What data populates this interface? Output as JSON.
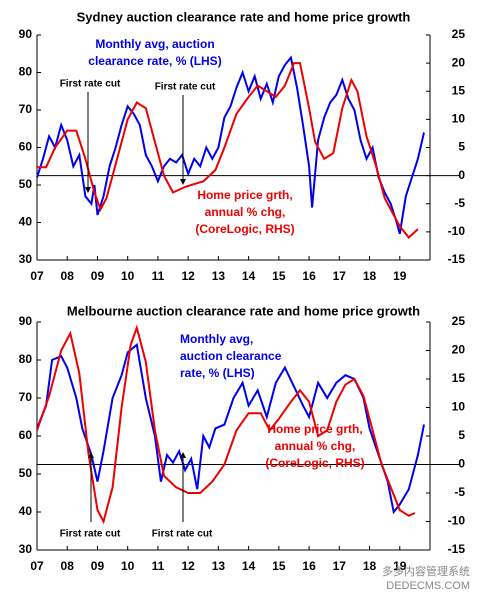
{
  "chart_data": [
    {
      "type": "line",
      "title": "Sydney auction clearance rate and home price growth",
      "xlim": [
        2007,
        2020
      ],
      "ylim": [
        30,
        90
      ],
      "y2lim": [
        -15,
        25
      ],
      "xticks": [
        {
          "value": 2007,
          "label": "07"
        },
        {
          "value": 2008,
          "label": "08"
        },
        {
          "value": 2009,
          "label": "09"
        },
        {
          "value": 2010,
          "label": "10"
        },
        {
          "value": 2011,
          "label": "11"
        },
        {
          "value": 2012,
          "label": "12"
        },
        {
          "value": 2013,
          "label": "13"
        },
        {
          "value": 2014,
          "label": "14"
        },
        {
          "value": 2015,
          "label": "15"
        },
        {
          "value": 2016,
          "label": "16"
        },
        {
          "value": 2017,
          "label": "17"
        },
        {
          "value": 2018,
          "label": "18"
        },
        {
          "value": 2019,
          "label": "19"
        }
      ],
      "yticks": [
        30,
        40,
        50,
        60,
        70,
        80,
        90
      ],
      "y2ticks": [
        -15,
        -10,
        -5,
        0,
        5,
        10,
        15,
        20,
        25
      ],
      "annotations": [
        "First rate cut",
        "First rate cut"
      ],
      "series": [
        {
          "name": [
            "Monthly avg, auction",
            "clearance rate, % (LHS)"
          ],
          "color": "#0000ee",
          "axis": "y",
          "x": [
            2007.0,
            2007.2,
            2007.4,
            2007.6,
            2007.8,
            2008.0,
            2008.2,
            2008.4,
            2008.6,
            2008.8,
            2008.9,
            2009.0,
            2009.2,
            2009.4,
            2009.6,
            2009.8,
            2010.0,
            2010.2,
            2010.4,
            2010.6,
            2010.8,
            2011.0,
            2011.2,
            2011.4,
            2011.6,
            2011.8,
            2012.0,
            2012.2,
            2012.4,
            2012.6,
            2012.8,
            2013.0,
            2013.2,
            2013.4,
            2013.6,
            2013.8,
            2014.0,
            2014.2,
            2014.4,
            2014.6,
            2014.8,
            2015.0,
            2015.2,
            2015.4,
            2015.6,
            2015.8,
            2016.0,
            2016.1,
            2016.3,
            2016.5,
            2016.7,
            2016.9,
            2017.1,
            2017.3,
            2017.5,
            2017.7,
            2017.9,
            2018.1,
            2018.3,
            2018.5,
            2018.7,
            2018.9,
            2019.0,
            2019.2,
            2019.4,
            2019.6,
            2019.8
          ],
          "values": [
            52,
            57,
            63,
            60,
            66,
            62,
            55,
            58,
            47,
            45,
            50,
            42,
            47,
            55,
            60,
            66,
            71,
            69,
            66,
            58,
            55,
            51,
            55,
            57,
            56,
            58,
            53,
            57,
            55,
            60,
            57,
            60,
            68,
            71,
            76,
            80,
            75,
            79,
            73,
            77,
            72,
            79,
            82,
            84,
            76,
            66,
            55,
            44,
            62,
            68,
            72,
            74,
            78,
            73,
            70,
            62,
            57,
            60,
            52,
            48,
            45,
            40,
            37,
            47,
            52,
            57,
            64
          ]
        },
        {
          "name": [
            "Home price grth,",
            "annual % chg,",
            "(CoreLogic, RHS)"
          ],
          "color": "#ee0000",
          "axis": "y2",
          "x": [
            2007.0,
            2007.3,
            2007.6,
            2008.0,
            2008.3,
            2008.6,
            2008.9,
            2009.1,
            2009.3,
            2009.6,
            2010.0,
            2010.3,
            2010.6,
            2010.9,
            2011.2,
            2011.5,
            2011.9,
            2012.2,
            2012.5,
            2012.9,
            2013.2,
            2013.6,
            2014.0,
            2014.3,
            2014.6,
            2014.9,
            2015.2,
            2015.5,
            2015.7,
            2016.0,
            2016.2,
            2016.5,
            2016.8,
            2017.1,
            2017.4,
            2017.6,
            2017.9,
            2018.2,
            2018.5,
            2018.8,
            2019.0,
            2019.3,
            2019.5,
            2019.6
          ],
          "values": [
            1.5,
            1.5,
            5,
            8,
            8,
            3,
            -3,
            -6,
            -4,
            2,
            10,
            13,
            12,
            6,
            0,
            -3,
            -2,
            -1.5,
            -1,
            1,
            5,
            11,
            14,
            16,
            15,
            14,
            16,
            20,
            20,
            12,
            6,
            3,
            4,
            12,
            17,
            15,
            7,
            2,
            -4,
            -7,
            -9,
            -11,
            -10,
            -9.5
          ]
        }
      ]
    },
    {
      "type": "line",
      "title": "Melbourne auction clearance rate and home price growth",
      "xlim": [
        2007,
        2020
      ],
      "ylim": [
        30,
        90
      ],
      "y2lim": [
        -15,
        25
      ],
      "xticks": [
        {
          "value": 2007,
          "label": "07"
        },
        {
          "value": 2008,
          "label": "08"
        },
        {
          "value": 2009,
          "label": "09"
        },
        {
          "value": 2010,
          "label": "10"
        },
        {
          "value": 2011,
          "label": "11"
        },
        {
          "value": 2012,
          "label": "12"
        },
        {
          "value": 2013,
          "label": "13"
        },
        {
          "value": 2014,
          "label": "14"
        },
        {
          "value": 2015,
          "label": "15"
        },
        {
          "value": 2016,
          "label": "16"
        },
        {
          "value": 2017,
          "label": "17"
        },
        {
          "value": 2018,
          "label": "18"
        },
        {
          "value": 2019,
          "label": "19"
        }
      ],
      "yticks": [
        30,
        40,
        50,
        60,
        70,
        80,
        90
      ],
      "y2ticks": [
        -15,
        -10,
        -5,
        0,
        5,
        10,
        15,
        20,
        25
      ],
      "annotations": [
        "First rate cut",
        "First rate cut"
      ],
      "watermark": [
        "多多内容管理系统",
        "DEDECMS.COM"
      ],
      "series": [
        {
          "name": [
            "Monthly avg,",
            "auction clearance",
            "rate, % (LHS)"
          ],
          "color": "#0000ee",
          "axis": "y",
          "x": [
            2007.0,
            2007.3,
            2007.5,
            2007.8,
            2008.0,
            2008.3,
            2008.5,
            2008.8,
            2009.0,
            2009.2,
            2009.5,
            2009.8,
            2010.0,
            2010.3,
            2010.6,
            2010.9,
            2011.1,
            2011.3,
            2011.5,
            2011.7,
            2011.9,
            2012.1,
            2012.3,
            2012.5,
            2012.7,
            2012.9,
            2013.2,
            2013.5,
            2013.8,
            2014.0,
            2014.3,
            2014.6,
            2014.9,
            2015.2,
            2015.5,
            2015.8,
            2016.0,
            2016.3,
            2016.6,
            2016.9,
            2017.2,
            2017.5,
            2017.8,
            2018.0,
            2018.3,
            2018.6,
            2018.8,
            2019.0,
            2019.3,
            2019.6,
            2019.8
          ],
          "values": [
            62,
            68,
            80,
            81,
            78,
            70,
            62,
            55,
            48,
            56,
            70,
            76,
            82,
            84,
            70,
            60,
            48,
            55,
            53,
            56,
            51,
            54,
            46,
            60,
            57,
            62,
            63,
            70,
            74,
            68,
            72,
            65,
            74,
            78,
            73,
            68,
            65,
            74,
            70,
            74,
            76,
            75,
            70,
            62,
            55,
            48,
            40,
            42,
            46,
            55,
            63
          ]
        },
        {
          "name": [
            "Home price grth,",
            "annual % chg,",
            "(CoreLogic, RHS)"
          ],
          "color": "#ee0000",
          "axis": "y2",
          "x": [
            2007.0,
            2007.4,
            2007.8,
            2008.1,
            2008.4,
            2008.7,
            2009.0,
            2009.2,
            2009.5,
            2009.8,
            2010.1,
            2010.3,
            2010.6,
            2010.9,
            2011.2,
            2011.6,
            2012.0,
            2012.4,
            2012.8,
            2013.2,
            2013.6,
            2014.0,
            2014.4,
            2014.7,
            2015.0,
            2015.4,
            2015.7,
            2016.0,
            2016.3,
            2016.6,
            2016.9,
            2017.2,
            2017.5,
            2017.8,
            2018.1,
            2018.4,
            2018.7,
            2019.0,
            2019.3,
            2019.5
          ],
          "values": [
            6,
            12,
            20,
            23,
            16,
            2,
            -8,
            -10,
            -4,
            10,
            21,
            24,
            18,
            6,
            -2,
            -4,
            -5,
            -5,
            -3,
            0,
            6,
            9,
            9,
            6,
            8,
            11,
            13,
            11,
            5,
            6,
            11,
            14,
            15,
            12,
            6,
            0,
            -4,
            -8,
            -9,
            -8.5
          ]
        }
      ]
    }
  ]
}
